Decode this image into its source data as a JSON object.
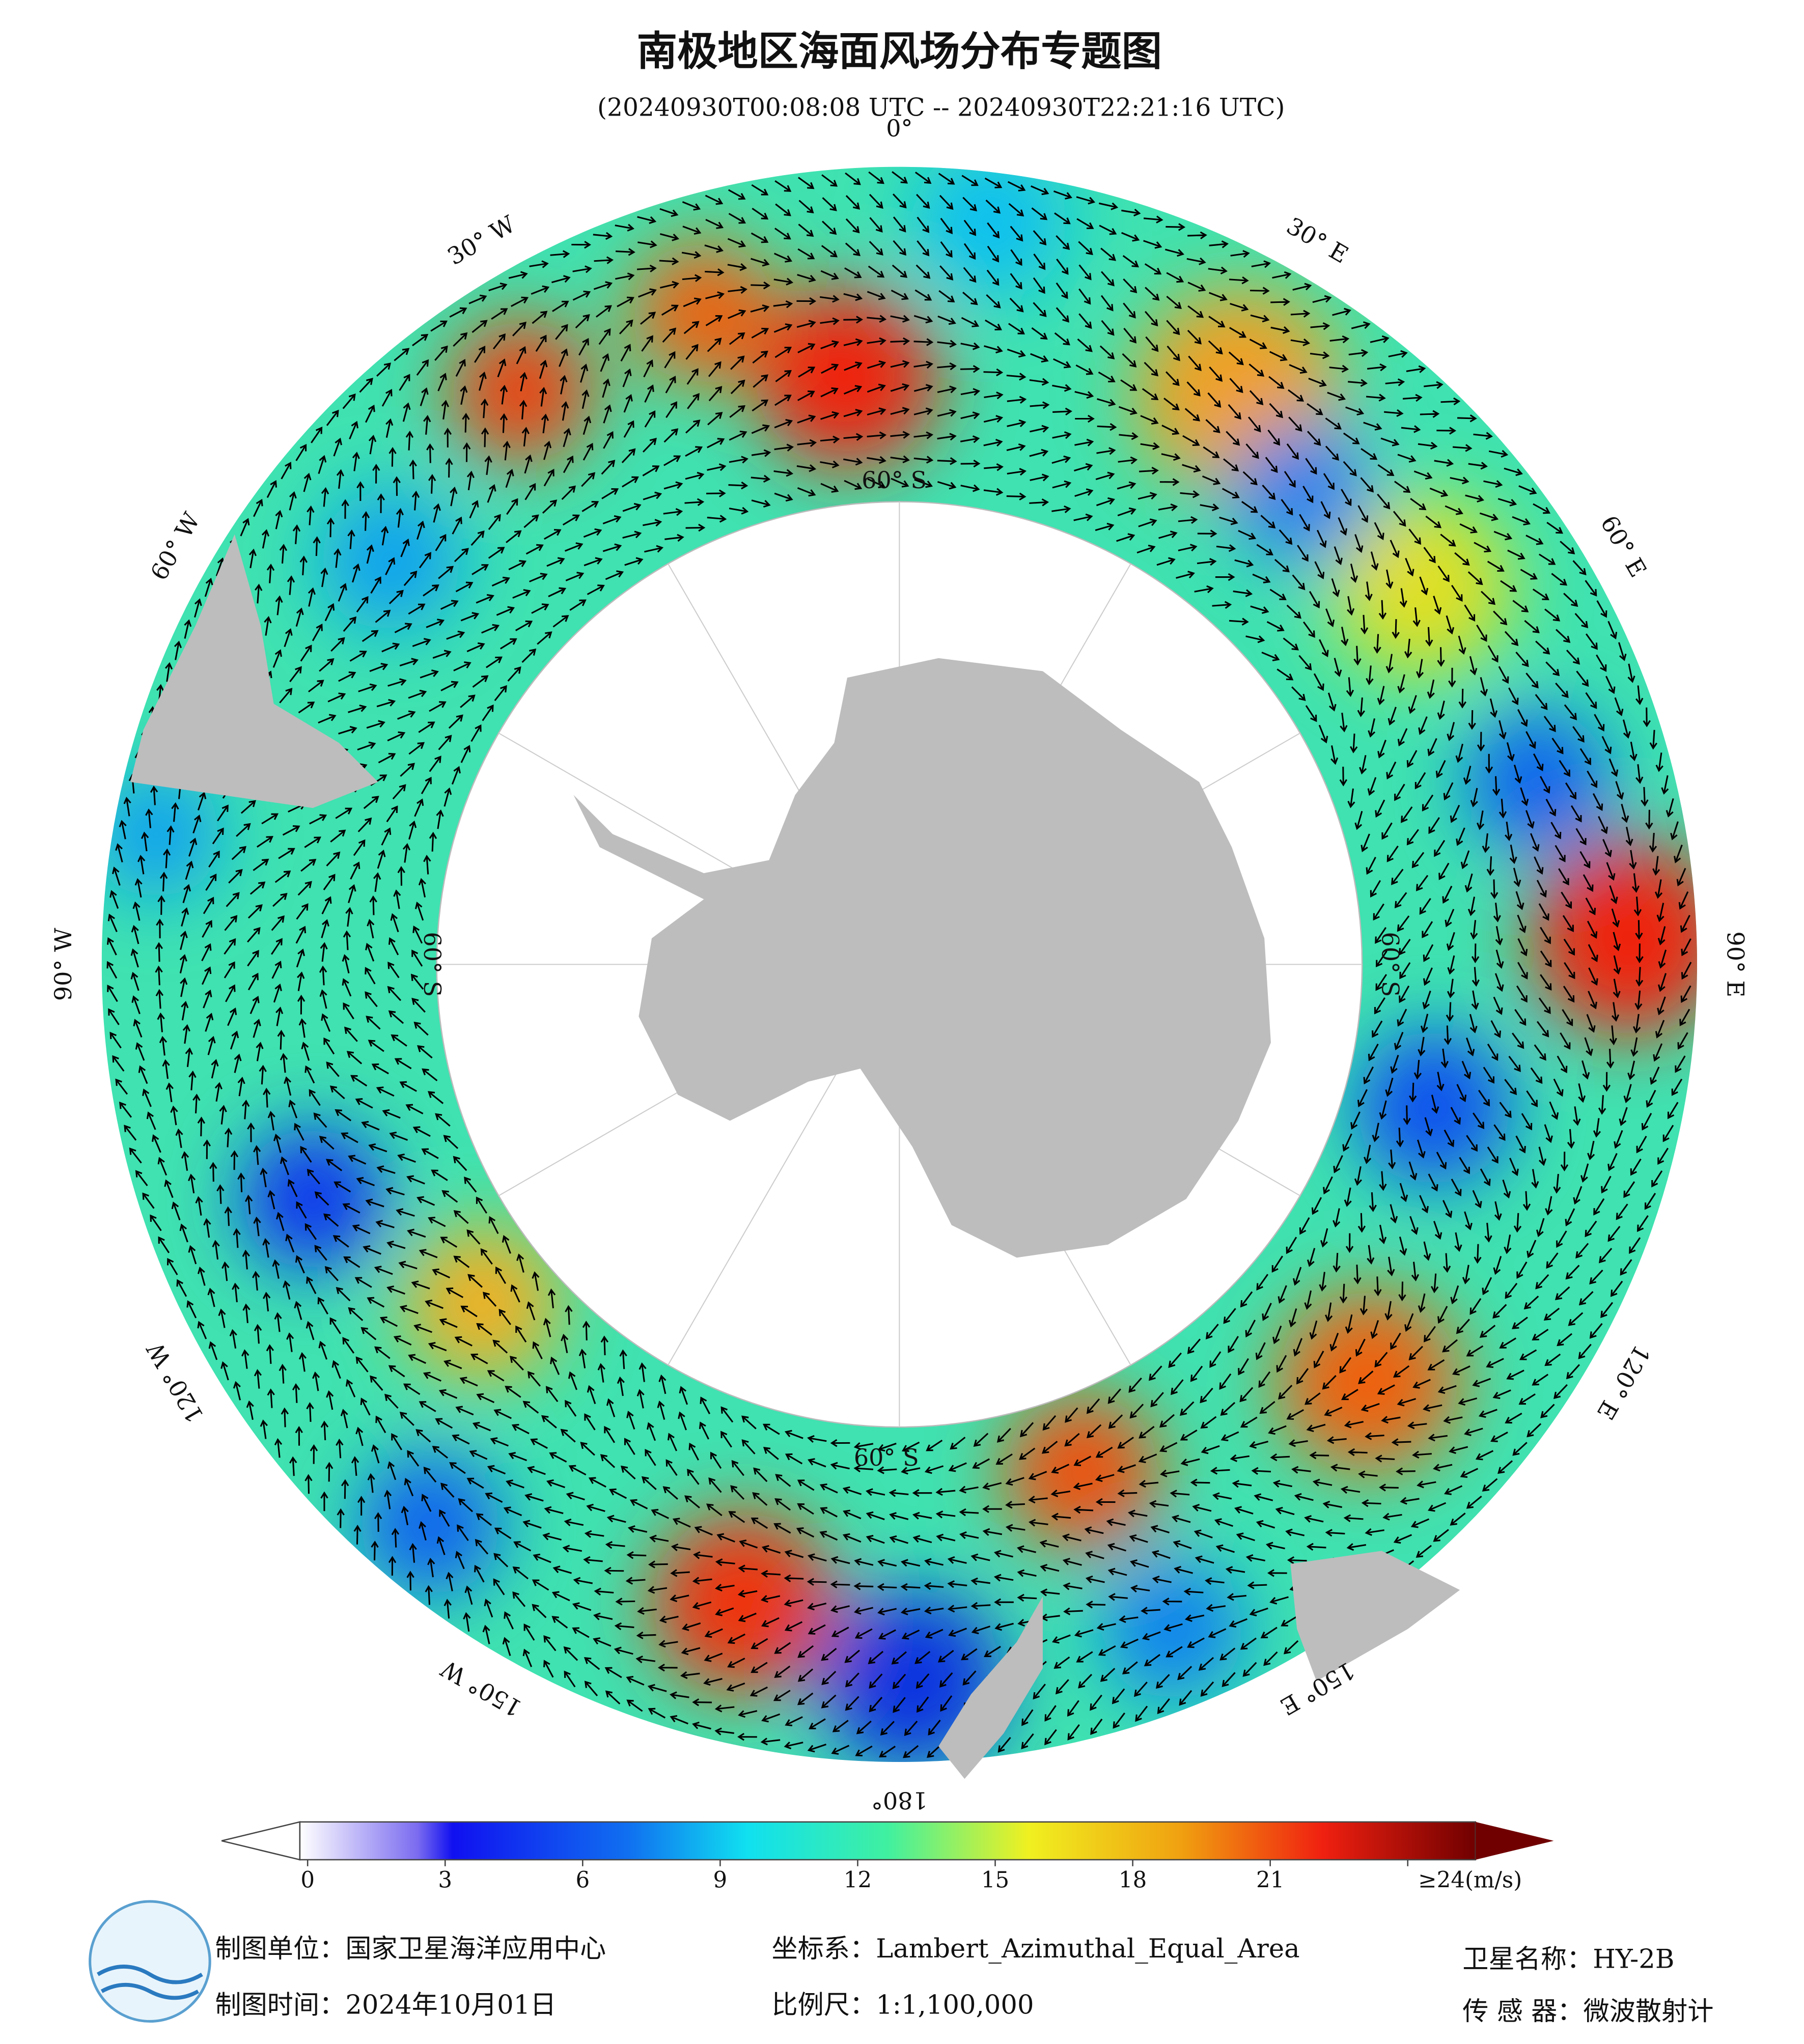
{
  "title": "南极地区海面风场分布专题图",
  "subtitle": "(20240930T00:08:08 UTC -- 20240930T22:21:16 UTC)",
  "map": {
    "longitude_labels": [
      "0°",
      "30° E",
      "60° E",
      "90° E",
      "120° E",
      "150° E",
      "180°",
      "150° W",
      "120° W",
      "90° W",
      "60° W",
      "30° W"
    ],
    "latitude_labels": [
      "60° S",
      "60° S",
      "60° S",
      "60° S"
    ]
  },
  "colorbar": {
    "clim": [
      0,
      24
    ],
    "ticks": [
      0,
      3,
      6,
      9,
      12,
      15,
      18,
      21,
      {
        "value": 24,
        "label": "≥24(m/s)"
      }
    ]
  },
  "footer": {
    "producer": "制图单位：国家卫星海洋应用中心",
    "date": "制图时间：2024年10月01日",
    "projection": "坐标系：Lambert_Azimuthal_Equal_Area",
    "scale": "比例尺：1:1,100,000",
    "satellite": "卫星名称：HY-2B",
    "sensor": "传 感 器：微波散射计"
  }
}
